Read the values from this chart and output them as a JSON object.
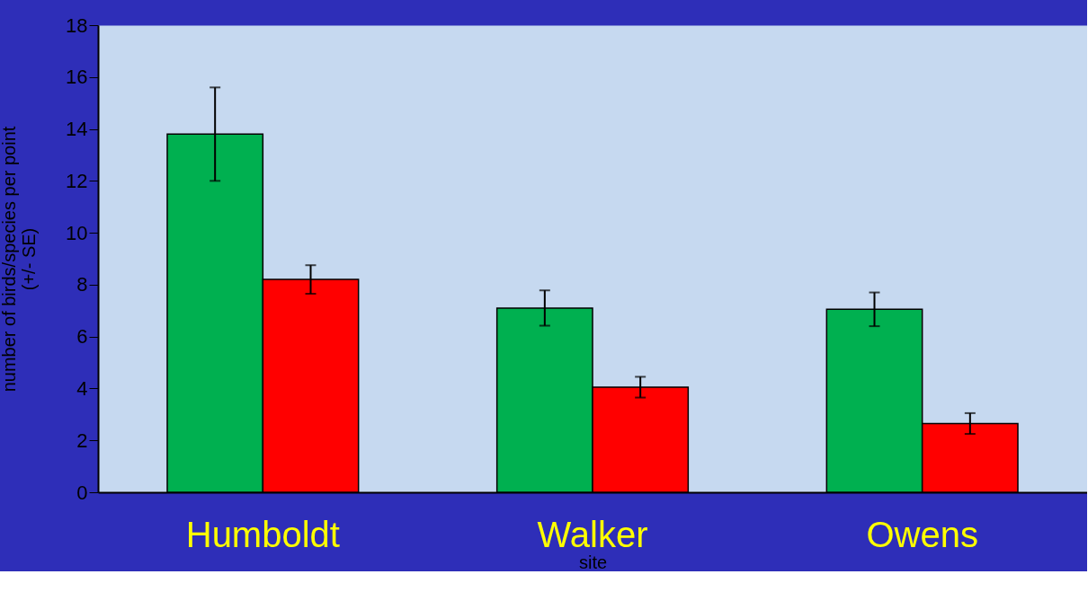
{
  "chart_data": {
    "type": "bar",
    "xlabel": "site",
    "ylabel": "number of birds/species per point\n(+/- SE)",
    "categories": [
      "Humboldt",
      "Walker",
      "Owens"
    ],
    "series": [
      {
        "color": "#00b050",
        "values": [
          13.8,
          7.1,
          7.05
        ],
        "errors": [
          1.8,
          0.68,
          0.65
        ]
      },
      {
        "color": "#ff0000",
        "values": [
          8.2,
          4.05,
          2.65
        ],
        "errors": [
          0.55,
          0.4,
          0.4
        ]
      }
    ],
    "ylim": [
      0,
      18
    ],
    "yticks": [
      0,
      2,
      4,
      6,
      8,
      10,
      12,
      14,
      16,
      18
    ],
    "grid": false
  }
}
